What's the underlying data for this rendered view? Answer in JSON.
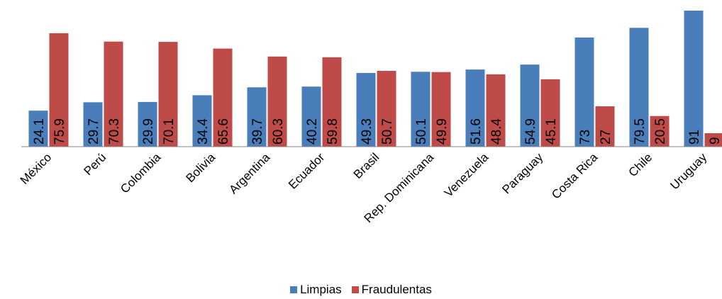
{
  "chart_data": {
    "type": "bar",
    "categories": [
      "México",
      "Perú",
      "Colombia",
      "Bolivia",
      "Argentina",
      "Ecuador",
      "Brasil",
      "Rep. Dominicana",
      "Venezuela",
      "Paraguay",
      "Costa Rica",
      "Chile",
      "Uruguay"
    ],
    "series": [
      {
        "name": "Limpias",
        "color": "#4a7ebb",
        "values": [
          24.1,
          29.7,
          29.9,
          34.4,
          39.7,
          40.2,
          49.3,
          50.1,
          51.6,
          54.9,
          73,
          79.5,
          91
        ],
        "labels": [
          "24.1",
          "29.7",
          "29.9",
          "34.4",
          "39.7",
          "40.2",
          "49.3",
          "50.1",
          "51.6",
          "54.9",
          "73",
          "79.5",
          "91"
        ]
      },
      {
        "name": "Fraudulentas",
        "color": "#be4b48",
        "values": [
          75.9,
          70.3,
          70.1,
          65.6,
          60.3,
          59.8,
          50.7,
          49.9,
          48.4,
          45.1,
          27,
          20.5,
          9
        ],
        "labels": [
          "75.9",
          "70.3",
          "70.1",
          "65.6",
          "60.3",
          "59.8",
          "50.7",
          "49.9",
          "48.4",
          "45.1",
          "27",
          "20.5",
          "9"
        ]
      }
    ],
    "ylim": [
      0,
      91
    ],
    "grid": false,
    "legend_position": "bottom",
    "data_labels": "inside-rotated"
  }
}
